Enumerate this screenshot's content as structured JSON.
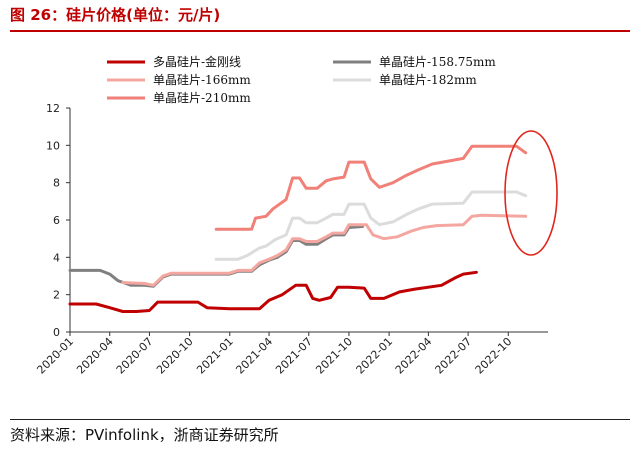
{
  "figure": {
    "title": "图 26：硅片价格(单位：元/片)",
    "source": "资料来源：PVinfolink，浙商证券研究所"
  },
  "colors": {
    "title": "#c00000",
    "annotation_ellipse": "#e0261b"
  },
  "chart_data": {
    "type": "line",
    "title": "",
    "xlabel": "",
    "ylabel": "",
    "ylim": [
      0,
      12
    ],
    "yticks": [
      0,
      2,
      4,
      6,
      8,
      10,
      12
    ],
    "xlim": [
      "2020-01-01",
      "2022-12-31"
    ],
    "xticks": [
      "2020-01",
      "2020-04",
      "2020-07",
      "2020-10",
      "2021-01",
      "2021-04",
      "2021-07",
      "2021-10",
      "2022-01",
      "2022-04",
      "2022-07",
      "2022-10"
    ],
    "grid": false,
    "legend": "top",
    "series": [
      {
        "name": "多晶硅片-金刚线",
        "color": "#c00000",
        "points": [
          [
            "2020-01-01",
            1.5
          ],
          [
            "2020-02-10",
            1.5
          ],
          [
            "2020-03-01",
            1.5
          ],
          [
            "2020-04-01",
            1.3
          ],
          [
            "2020-05-01",
            1.1
          ],
          [
            "2020-06-01",
            1.1
          ],
          [
            "2020-07-01",
            1.15
          ],
          [
            "2020-07-20",
            1.6
          ],
          [
            "2020-10-20",
            1.6
          ],
          [
            "2020-11-10",
            1.3
          ],
          [
            "2021-01-01",
            1.25
          ],
          [
            "2021-03-10",
            1.25
          ],
          [
            "2021-04-01",
            1.7
          ],
          [
            "2021-05-01",
            2.0
          ],
          [
            "2021-06-01",
            2.5
          ],
          [
            "2021-06-25",
            2.5
          ],
          [
            "2021-07-10",
            1.8
          ],
          [
            "2021-07-25",
            1.7
          ],
          [
            "2021-08-20",
            1.85
          ],
          [
            "2021-09-05",
            2.4
          ],
          [
            "2021-10-01",
            2.4
          ],
          [
            "2021-11-05",
            2.35
          ],
          [
            "2021-11-20",
            1.8
          ],
          [
            "2021-12-20",
            1.8
          ],
          [
            "2022-01-25",
            2.15
          ],
          [
            "2022-03-01",
            2.3
          ],
          [
            "2022-05-01",
            2.5
          ],
          [
            "2022-06-01",
            2.9
          ],
          [
            "2022-06-20",
            3.1
          ],
          [
            "2022-07-20",
            3.2
          ]
        ]
      },
      {
        "name": "单晶硅片-158.75mm",
        "color": "#808080",
        "points": [
          [
            "2020-01-01",
            3.3
          ],
          [
            "2020-03-10",
            3.3
          ],
          [
            "2020-04-01",
            3.1
          ],
          [
            "2020-04-20",
            2.75
          ],
          [
            "2020-05-20",
            2.5
          ],
          [
            "2020-06-20",
            2.5
          ],
          [
            "2020-07-10",
            2.45
          ],
          [
            "2020-08-01",
            2.95
          ],
          [
            "2020-08-20",
            3.1
          ],
          [
            "2020-12-31",
            3.1
          ],
          [
            "2021-01-20",
            3.25
          ],
          [
            "2021-02-20",
            3.25
          ],
          [
            "2021-03-10",
            3.6
          ],
          [
            "2021-04-01",
            3.85
          ],
          [
            "2021-04-20",
            4.0
          ],
          [
            "2021-05-10",
            4.3
          ],
          [
            "2021-05-25",
            4.9
          ],
          [
            "2021-06-10",
            4.9
          ],
          [
            "2021-06-25",
            4.7
          ],
          [
            "2021-07-20",
            4.7
          ],
          [
            "2021-08-10",
            5.0
          ],
          [
            "2021-08-25",
            5.2
          ],
          [
            "2021-09-20",
            5.2
          ],
          [
            "2021-10-01",
            5.6
          ],
          [
            "2021-11-01",
            5.65
          ]
        ]
      },
      {
        "name": "单晶硅片-166mm",
        "color": "#f4a6a0",
        "points": [
          [
            "2020-05-01",
            2.65
          ],
          [
            "2020-06-20",
            2.6
          ],
          [
            "2020-07-10",
            2.5
          ],
          [
            "2020-08-01",
            3.0
          ],
          [
            "2020-08-20",
            3.15
          ],
          [
            "2020-12-31",
            3.15
          ],
          [
            "2021-01-20",
            3.3
          ],
          [
            "2021-02-20",
            3.3
          ],
          [
            "2021-03-10",
            3.7
          ],
          [
            "2021-04-01",
            3.9
          ],
          [
            "2021-04-20",
            4.1
          ],
          [
            "2021-05-10",
            4.4
          ],
          [
            "2021-05-25",
            5.0
          ],
          [
            "2021-06-10",
            5.0
          ],
          [
            "2021-06-25",
            4.85
          ],
          [
            "2021-07-20",
            4.85
          ],
          [
            "2021-08-10",
            5.1
          ],
          [
            "2021-08-25",
            5.3
          ],
          [
            "2021-09-20",
            5.3
          ],
          [
            "2021-10-01",
            5.75
          ],
          [
            "2021-11-10",
            5.75
          ],
          [
            "2021-11-25",
            5.2
          ],
          [
            "2021-12-20",
            5.0
          ],
          [
            "2022-01-20",
            5.1
          ],
          [
            "2022-02-20",
            5.4
          ],
          [
            "2022-03-20",
            5.6
          ],
          [
            "2022-04-20",
            5.7
          ],
          [
            "2022-06-20",
            5.75
          ],
          [
            "2022-07-10",
            6.2
          ],
          [
            "2022-08-01",
            6.25
          ],
          [
            "2022-11-10",
            6.2
          ]
        ]
      },
      {
        "name": "单晶硅片-182mm",
        "color": "#dcdcdc",
        "points": [
          [
            "2020-12-01",
            3.9
          ],
          [
            "2021-01-20",
            3.9
          ],
          [
            "2021-02-10",
            4.1
          ],
          [
            "2021-03-10",
            4.5
          ],
          [
            "2021-03-25",
            4.6
          ],
          [
            "2021-04-15",
            4.95
          ],
          [
            "2021-05-10",
            5.2
          ],
          [
            "2021-05-25",
            6.1
          ],
          [
            "2021-06-10",
            6.1
          ],
          [
            "2021-06-25",
            5.85
          ],
          [
            "2021-07-20",
            5.85
          ],
          [
            "2021-08-10",
            6.1
          ],
          [
            "2021-08-25",
            6.3
          ],
          [
            "2021-09-20",
            6.3
          ],
          [
            "2021-10-01",
            6.85
          ],
          [
            "2021-11-05",
            6.85
          ],
          [
            "2021-11-20",
            6.1
          ],
          [
            "2021-12-10",
            5.75
          ],
          [
            "2022-01-10",
            5.9
          ],
          [
            "2022-02-10",
            6.3
          ],
          [
            "2022-03-10",
            6.6
          ],
          [
            "2022-04-10",
            6.85
          ],
          [
            "2022-06-20",
            6.9
          ],
          [
            "2022-07-10",
            7.5
          ],
          [
            "2022-10-20",
            7.5
          ],
          [
            "2022-11-10",
            7.3
          ]
        ]
      },
      {
        "name": "单晶硅片-210mm",
        "color": "#f08078",
        "points": [
          [
            "2020-12-01",
            5.5
          ],
          [
            "2021-01-20",
            5.5
          ],
          [
            "2021-02-20",
            5.5
          ],
          [
            "2021-03-01",
            6.1
          ],
          [
            "2021-03-25",
            6.2
          ],
          [
            "2021-04-10",
            6.6
          ],
          [
            "2021-05-10",
            7.1
          ],
          [
            "2021-05-25",
            8.25
          ],
          [
            "2021-06-10",
            8.25
          ],
          [
            "2021-06-25",
            7.7
          ],
          [
            "2021-07-20",
            7.7
          ],
          [
            "2021-08-10",
            8.1
          ],
          [
            "2021-08-25",
            8.2
          ],
          [
            "2021-09-20",
            8.3
          ],
          [
            "2021-10-01",
            9.1
          ],
          [
            "2021-11-05",
            9.1
          ],
          [
            "2021-11-20",
            8.2
          ],
          [
            "2021-12-10",
            7.75
          ],
          [
            "2022-01-10",
            8.0
          ],
          [
            "2022-02-10",
            8.4
          ],
          [
            "2022-03-10",
            8.7
          ],
          [
            "2022-04-10",
            9.0
          ],
          [
            "2022-06-20",
            9.3
          ],
          [
            "2022-07-10",
            9.95
          ],
          [
            "2022-10-20",
            9.95
          ],
          [
            "2022-11-10",
            9.6
          ]
        ]
      }
    ]
  }
}
